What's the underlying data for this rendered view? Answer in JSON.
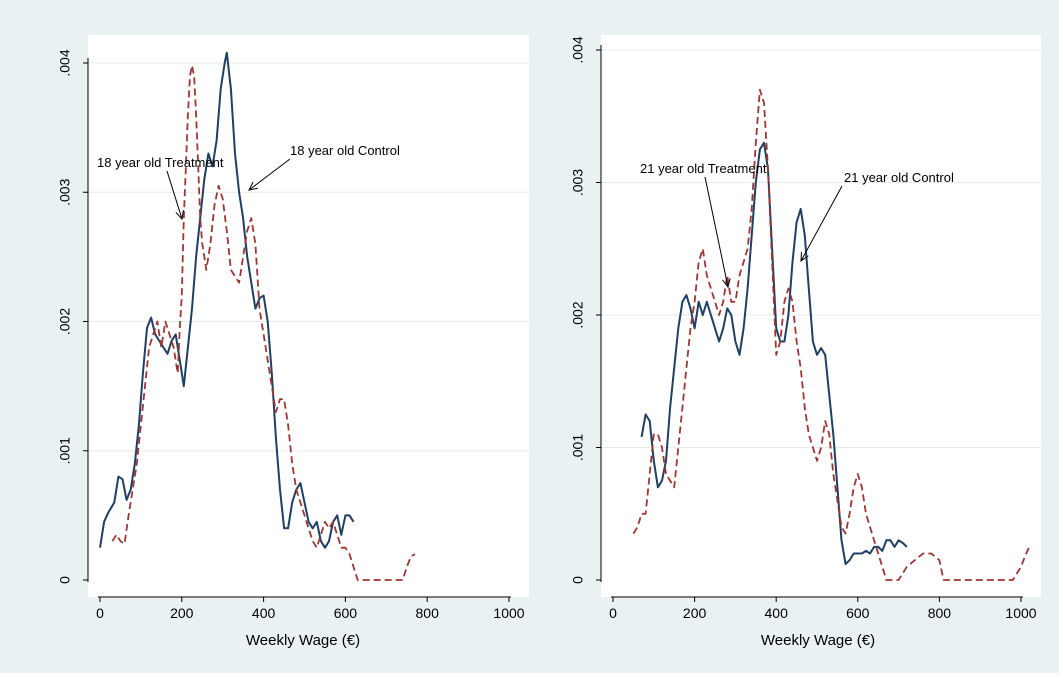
{
  "colors": {
    "outer_background": "#eaf1f3",
    "plot_background": "#ffffff",
    "grid": "#e6ebed",
    "treatment": "#9e3533",
    "control": "#1f3f63",
    "axis": "#000000"
  },
  "chart_data": [
    {
      "type": "line",
      "xlabel": "Weekly Wage (€)",
      "ylabel": "",
      "xlim": [
        0,
        1000
      ],
      "ylim": [
        0,
        0.004
      ],
      "xticks": [
        0,
        200,
        400,
        600,
        800,
        1000
      ],
      "xtick_labels": [
        "0",
        "200",
        "400",
        "600",
        "800",
        "1000"
      ],
      "yticks": [
        0,
        0.001,
        0.002,
        0.003,
        0.004
      ],
      "ytick_labels": [
        "0",
        ".001",
        ".002",
        ".003",
        ".004"
      ],
      "grid": true,
      "annotations": [
        {
          "text": "18 year old Treatment",
          "series": "treatment",
          "x": 200,
          "y": 0.0028
        },
        {
          "text": "18 year old Control",
          "series": "control",
          "x": 360,
          "y": 0.003
        }
      ],
      "series": [
        {
          "key": "control",
          "style": "solid",
          "x": [
            0,
            10,
            20,
            35,
            45,
            55,
            65,
            75,
            85,
            95,
            105,
            115,
            125,
            135,
            145,
            155,
            165,
            175,
            185,
            195,
            205,
            215,
            225,
            235,
            245,
            255,
            265,
            275,
            285,
            295,
            305,
            310,
            320,
            330,
            340,
            350,
            360,
            370,
            380,
            390,
            400,
            410,
            420,
            430,
            440,
            450,
            460,
            470,
            480,
            490,
            500,
            510,
            520,
            530,
            540,
            550,
            560,
            570,
            580,
            590,
            600,
            610,
            620
          ],
          "y": [
            0.00025,
            0.00045,
            0.00052,
            0.0006,
            0.0008,
            0.00078,
            0.00062,
            0.0007,
            0.0009,
            0.0012,
            0.0016,
            0.00195,
            0.00203,
            0.0019,
            0.00185,
            0.0018,
            0.00175,
            0.00185,
            0.0019,
            0.0017,
            0.0015,
            0.0018,
            0.0021,
            0.0025,
            0.0028,
            0.0031,
            0.0033,
            0.0032,
            0.0034,
            0.0038,
            0.004,
            0.00408,
            0.0038,
            0.0033,
            0.003,
            0.0028,
            0.0025,
            0.0023,
            0.0021,
            0.00218,
            0.0022,
            0.002,
            0.0016,
            0.0011,
            0.0007,
            0.0004,
            0.0004,
            0.0006,
            0.0007,
            0.00075,
            0.0006,
            0.00045,
            0.0004,
            0.00045,
            0.0003,
            0.00025,
            0.0003,
            0.00045,
            0.0005,
            0.00035,
            0.0005,
            0.0005,
            0.00045
          ]
        },
        {
          "key": "treatment",
          "style": "dashed",
          "x": [
            30,
            40,
            50,
            60,
            70,
            80,
            90,
            100,
            110,
            120,
            130,
            140,
            150,
            160,
            170,
            180,
            190,
            195,
            200,
            205,
            210,
            215,
            220,
            225,
            230,
            235,
            240,
            245,
            250,
            260,
            270,
            280,
            290,
            300,
            310,
            320,
            330,
            340,
            350,
            360,
            370,
            380,
            390,
            400,
            410,
            420,
            430,
            440,
            450,
            460,
            470,
            480,
            490,
            500,
            510,
            520,
            530,
            540,
            550,
            560,
            570,
            580,
            590,
            600,
            610,
            620,
            630,
            640,
            650,
            680,
            700,
            720,
            740,
            750,
            760,
            770
          ],
          "y": [
            0.0003,
            0.00035,
            0.0003,
            0.00028,
            0.0005,
            0.0007,
            0.0009,
            0.0012,
            0.0015,
            0.0018,
            0.0019,
            0.002,
            0.0018,
            0.002,
            0.0019,
            0.0018,
            0.0016,
            0.00195,
            0.0022,
            0.0028,
            0.0032,
            0.0036,
            0.0039,
            0.00398,
            0.0039,
            0.0036,
            0.0032,
            0.0028,
            0.0026,
            0.0024,
            0.0026,
            0.0029,
            0.00305,
            0.00295,
            0.0027,
            0.0024,
            0.00235,
            0.0023,
            0.0025,
            0.0027,
            0.0028,
            0.0026,
            0.0021,
            0.0019,
            0.0017,
            0.0015,
            0.0013,
            0.0014,
            0.0014,
            0.0012,
            0.0009,
            0.0007,
            0.0006,
            0.0005,
            0.0004,
            0.0003,
            0.00025,
            0.00035,
            0.00045,
            0.0004,
            0.00045,
            0.00035,
            0.00025,
            0.00025,
            0.0002,
            0.0001,
            0.0,
            0.0,
            0.0,
            0.0,
            0.0,
            0.0,
            0.0,
            0.0001,
            0.00018,
            0.0002
          ]
        }
      ]
    },
    {
      "type": "line",
      "xlabel": "Weekly Wage (€)",
      "ylabel": "",
      "xlim": [
        0,
        1000
      ],
      "ylim": [
        0,
        0.004
      ],
      "xticks": [
        0,
        200,
        400,
        600,
        800,
        1000
      ],
      "xtick_labels": [
        "0",
        "200",
        "400",
        "600",
        "800",
        "1000"
      ],
      "yticks": [
        0,
        0.001,
        0.002,
        0.003,
        0.004
      ],
      "ytick_labels": [
        "0",
        ".001",
        ".002",
        ".003",
        ".004"
      ],
      "grid": true,
      "annotations": [
        {
          "text": "21 year old Treatment",
          "series": "treatment",
          "x": 290,
          "y": 0.0022
        },
        {
          "text": "21 year old Control",
          "series": "control",
          "x": 460,
          "y": 0.0024
        }
      ],
      "series": [
        {
          "key": "control",
          "style": "solid",
          "x": [
            70,
            80,
            90,
            100,
            110,
            120,
            130,
            140,
            150,
            160,
            170,
            180,
            190,
            200,
            210,
            220,
            230,
            240,
            250,
            260,
            270,
            280,
            290,
            300,
            310,
            320,
            330,
            340,
            350,
            360,
            370,
            380,
            390,
            400,
            410,
            420,
            430,
            440,
            450,
            460,
            470,
            480,
            490,
            500,
            510,
            520,
            530,
            540,
            550,
            560,
            570,
            580,
            590,
            600,
            610,
            620,
            630,
            640,
            650,
            660,
            670,
            680,
            690,
            700,
            710,
            720
          ],
          "y": [
            0.00108,
            0.00125,
            0.0012,
            0.0009,
            0.0007,
            0.00075,
            0.0009,
            0.0013,
            0.0016,
            0.0019,
            0.0021,
            0.00215,
            0.00205,
            0.0019,
            0.0021,
            0.002,
            0.0021,
            0.002,
            0.0019,
            0.0018,
            0.0019,
            0.00205,
            0.002,
            0.0018,
            0.0017,
            0.0019,
            0.0022,
            0.0026,
            0.003,
            0.00325,
            0.0033,
            0.0031,
            0.0025,
            0.0019,
            0.0018,
            0.0018,
            0.002,
            0.0024,
            0.0027,
            0.0028,
            0.0026,
            0.0022,
            0.0018,
            0.0017,
            0.00175,
            0.0017,
            0.0014,
            0.0011,
            0.0007,
            0.0003,
            0.00012,
            0.00015,
            0.0002,
            0.0002,
            0.0002,
            0.00022,
            0.0002,
            0.00025,
            0.00025,
            0.00022,
            0.0003,
            0.0003,
            0.00025,
            0.0003,
            0.00028,
            0.00025
          ]
        },
        {
          "key": "treatment",
          "style": "dashed",
          "x": [
            50,
            60,
            70,
            80,
            90,
            100,
            110,
            120,
            130,
            140,
            150,
            160,
            170,
            180,
            190,
            200,
            210,
            220,
            230,
            240,
            250,
            260,
            270,
            280,
            290,
            300,
            310,
            320,
            330,
            340,
            350,
            360,
            370,
            380,
            390,
            400,
            410,
            420,
            430,
            440,
            450,
            460,
            470,
            480,
            490,
            500,
            510,
            520,
            530,
            540,
            550,
            560,
            570,
            580,
            590,
            600,
            610,
            620,
            630,
            640,
            650,
            660,
            670,
            680,
            690,
            700,
            720,
            740,
            760,
            780,
            800,
            810,
            820,
            830,
            840,
            850,
            860,
            880,
            900,
            920,
            940,
            960,
            980,
            1000,
            1010,
            1020
          ],
          "y": [
            0.00035,
            0.0004,
            0.0005,
            0.0005,
            0.0008,
            0.0011,
            0.0011,
            0.001,
            0.0008,
            0.00075,
            0.0007,
            0.001,
            0.0013,
            0.0016,
            0.0019,
            0.0021,
            0.0024,
            0.0025,
            0.0023,
            0.0022,
            0.0021,
            0.002,
            0.0021,
            0.0023,
            0.0021,
            0.0021,
            0.0023,
            0.0024,
            0.0025,
            0.0028,
            0.0033,
            0.0037,
            0.0036,
            0.0031,
            0.0024,
            0.0017,
            0.0018,
            0.0021,
            0.0022,
            0.0021,
            0.0018,
            0.0016,
            0.0013,
            0.0011,
            0.001,
            0.0009,
            0.001,
            0.0012,
            0.0011,
            0.0008,
            0.0006,
            0.0004,
            0.00035,
            0.0005,
            0.0007,
            0.0008,
            0.0007,
            0.0005,
            0.0004,
            0.0003,
            0.0002,
            0.0001,
            0.0,
            0.0,
            0.0,
            0.0,
            0.0001,
            0.00015,
            0.0002,
            0.0002,
            0.00015,
            0.0,
            0.0,
            0.0,
            0.0,
            0.0,
            0.0,
            0.0,
            0.0,
            0.0,
            0.0,
            0.0,
            0.0,
            0.0001,
            0.00018,
            0.00025
          ]
        }
      ]
    }
  ]
}
